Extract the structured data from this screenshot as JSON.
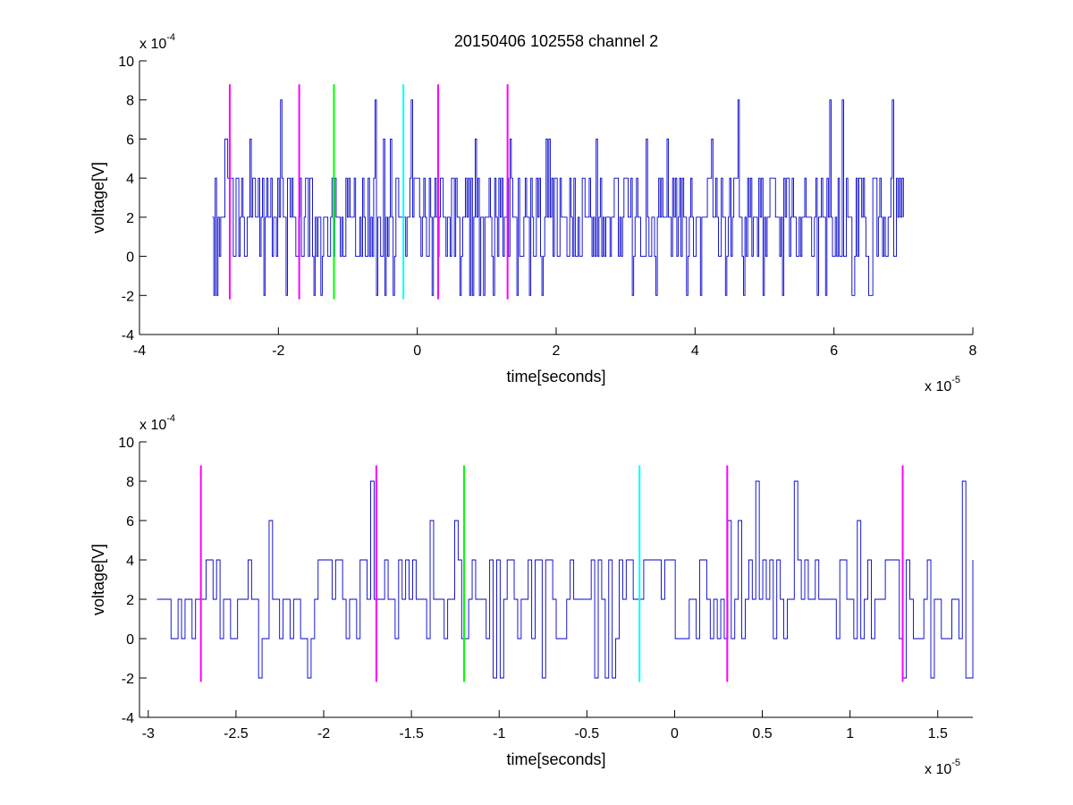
{
  "chart_data": [
    {
      "type": "line",
      "title": "20150406 102558 channel 2",
      "xlabel": "time[seconds]",
      "ylabel": "voltage[V]",
      "x_multiplier": {
        "base": "x 10",
        "exp": "-5"
      },
      "y_multiplier": {
        "base": "x 10",
        "exp": "-4"
      },
      "xlim": [
        -4,
        8
      ],
      "ylim": [
        -4,
        10
      ],
      "x_ticks": [
        -4,
        -2,
        0,
        2,
        4,
        6,
        8
      ],
      "y_ticks": [
        -4,
        -2,
        0,
        2,
        4,
        6,
        8,
        10
      ],
      "grid": false,
      "signal": {
        "color": "#0000cc",
        "x_range": [
          -2.95,
          7.0
        ],
        "seed": 7,
        "levels": [
          -2,
          0,
          2,
          4,
          6,
          8
        ],
        "baseline": 2
      },
      "markers": [
        {
          "x": -2.7,
          "color": "#ff00ff",
          "ymin": -2.2,
          "ymax": 8.8
        },
        {
          "x": -1.7,
          "color": "#ff00ff",
          "ymin": -2.2,
          "ymax": 8.8
        },
        {
          "x": -1.2,
          "color": "#00ff00",
          "ymin": -2.2,
          "ymax": 8.8
        },
        {
          "x": -0.2,
          "color": "#00ffff",
          "ymin": -2.2,
          "ymax": 8.8
        },
        {
          "x": 0.3,
          "color": "#ff00ff",
          "ymin": -2.2,
          "ymax": 8.8
        },
        {
          "x": 1.3,
          "color": "#ff00ff",
          "ymin": -2.2,
          "ymax": 8.8
        }
      ]
    },
    {
      "type": "line",
      "title": "",
      "xlabel": "time[seconds]",
      "ylabel": "voltage[V]",
      "x_multiplier": {
        "base": "x 10",
        "exp": "-5"
      },
      "y_multiplier": {
        "base": "x 10",
        "exp": "-4"
      },
      "xlim": [
        -3.05,
        1.7
      ],
      "ylim": [
        -4,
        10
      ],
      "x_ticks": [
        -3,
        -2.5,
        -2,
        -1.5,
        -1,
        -0.5,
        0,
        0.5,
        1,
        1.5
      ],
      "y_ticks": [
        -4,
        -2,
        0,
        2,
        4,
        6,
        8,
        10
      ],
      "grid": false,
      "signal": {
        "color": "#0000cc",
        "x_range": [
          -2.95,
          1.7
        ],
        "seed": 11,
        "levels": [
          -2,
          0,
          2,
          4,
          6,
          8
        ],
        "baseline": 2
      },
      "markers": [
        {
          "x": -2.7,
          "color": "#ff00ff",
          "ymin": -2.2,
          "ymax": 8.8
        },
        {
          "x": -1.7,
          "color": "#ff00ff",
          "ymin": -2.2,
          "ymax": 8.8
        },
        {
          "x": -1.2,
          "color": "#00ff00",
          "ymin": -2.2,
          "ymax": 8.8
        },
        {
          "x": -0.2,
          "color": "#00ffff",
          "ymin": -2.2,
          "ymax": 8.8
        },
        {
          "x": 0.3,
          "color": "#ff00ff",
          "ymin": -2.2,
          "ymax": 8.8
        },
        {
          "x": 1.3,
          "color": "#ff00ff",
          "ymin": -2.2,
          "ymax": 8.8
        }
      ]
    }
  ]
}
